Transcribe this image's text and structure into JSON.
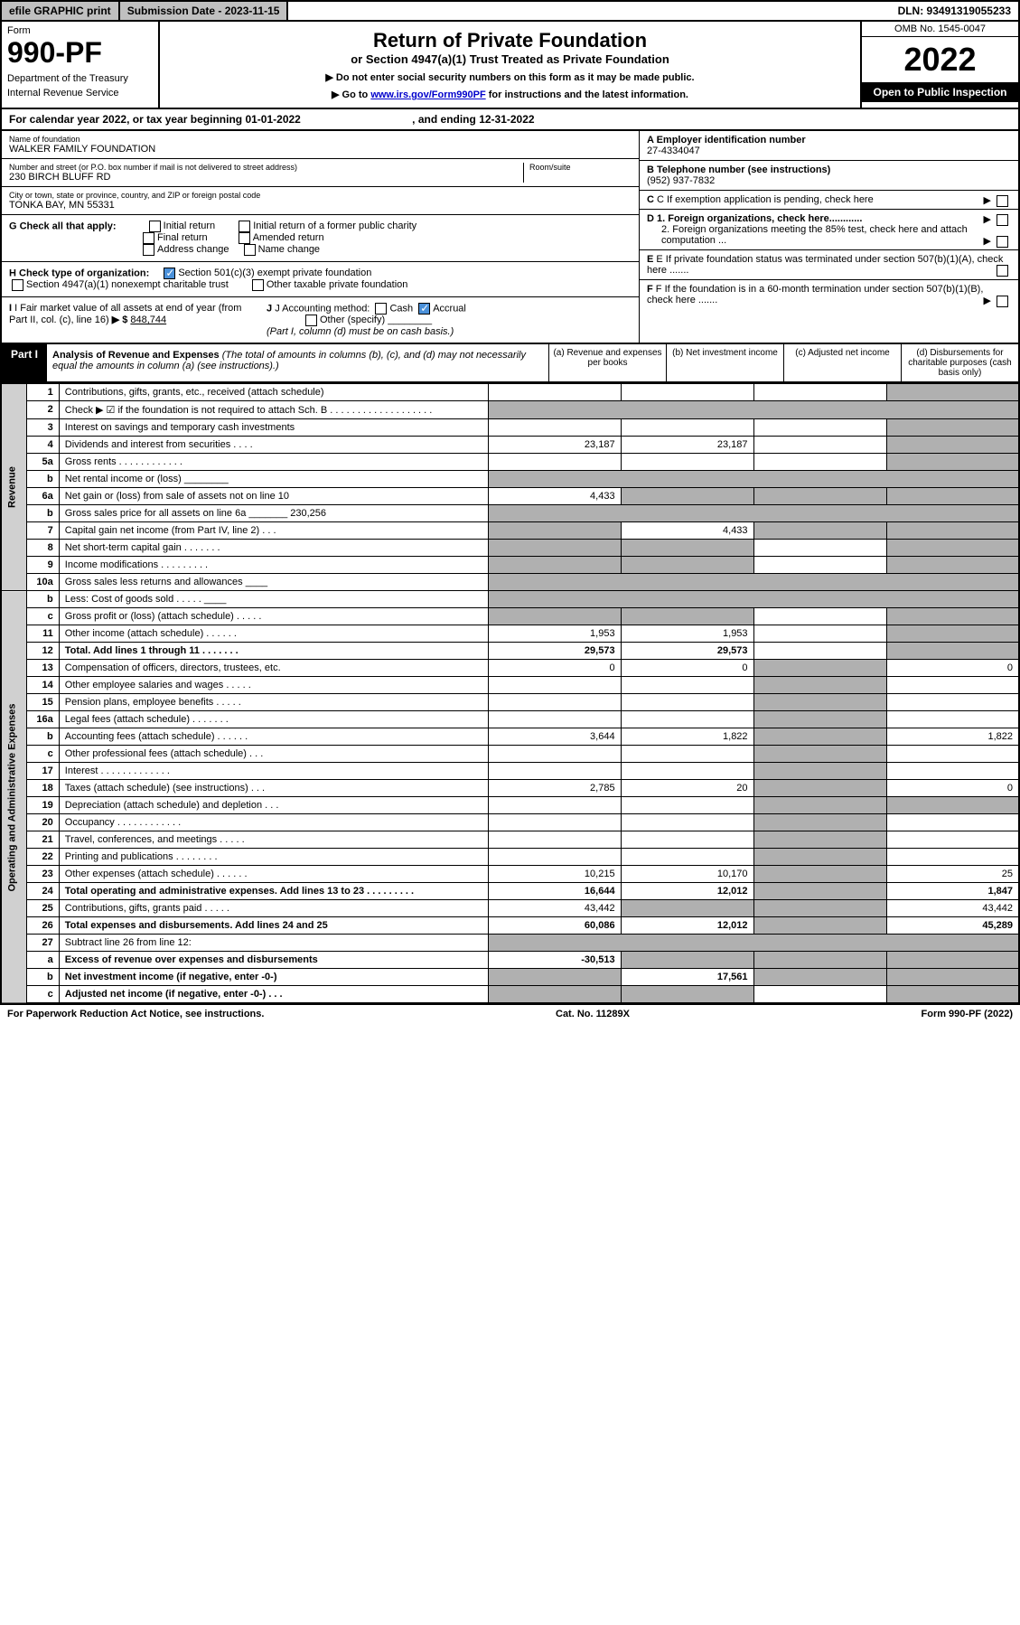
{
  "header": {
    "efile": "efile GRAPHIC print",
    "submission": "Submission Date - 2023-11-15",
    "dln": "DLN: 93491319055233"
  },
  "form": {
    "label": "Form",
    "number": "990-PF",
    "dept1": "Department of the Treasury",
    "dept2": "Internal Revenue Service"
  },
  "title": {
    "main": "Return of Private Foundation",
    "sub": "or Section 4947(a)(1) Trust Treated as Private Foundation",
    "note1": "▶ Do not enter social security numbers on this form as it may be made public.",
    "note2_prefix": "▶ Go to ",
    "note2_link": "www.irs.gov/Form990PF",
    "note2_suffix": " for instructions and the latest information."
  },
  "year_box": {
    "omb": "OMB No. 1545-0047",
    "year": "2022",
    "inspect": "Open to Public Inspection"
  },
  "calendar": {
    "prefix": "For calendar year 2022, or tax year beginning ",
    "begin": "01-01-2022",
    "mid": " , and ending ",
    "end": "12-31-2022"
  },
  "entity": {
    "name_label": "Name of foundation",
    "name": "WALKER FAMILY FOUNDATION",
    "addr_label": "Number and street (or P.O. box number if mail is not delivered to street address)",
    "addr": "230 BIRCH BLUFF RD",
    "room_label": "Room/suite",
    "city_label": "City or town, state or province, country, and ZIP or foreign postal code",
    "city": "TONKA BAY, MN  55331",
    "ein_label": "A Employer identification number",
    "ein": "27-4334047",
    "phone_label": "B Telephone number (see instructions)",
    "phone": "(952) 937-7832",
    "c_label": "C If exemption application is pending, check here",
    "d1": "D 1. Foreign organizations, check here............",
    "d2": "2. Foreign organizations meeting the 85% test, check here and attach computation ...",
    "e": "E If private foundation status was terminated under section 507(b)(1)(A), check here .......",
    "f": "F If the foundation is in a 60-month termination under section 507(b)(1)(B), check here ......."
  },
  "checks": {
    "g_label": "G Check all that apply:",
    "g_opts": [
      "Initial return",
      "Initial return of a former public charity",
      "Final return",
      "Amended return",
      "Address change",
      "Name change"
    ],
    "h_label": "H Check type of organization:",
    "h1": "Section 501(c)(3) exempt private foundation",
    "h2": "Section 4947(a)(1) nonexempt charitable trust",
    "h3": "Other taxable private foundation",
    "i_label": "I Fair market value of all assets at end of year (from Part II, col. (c), line 16)",
    "i_val": "848,744",
    "j_label": "J Accounting method:",
    "j_opts": [
      "Cash",
      "Accrual"
    ],
    "j_other": "Other (specify)",
    "j_note": "(Part I, column (d) must be on cash basis.)"
  },
  "part1": {
    "label": "Part I",
    "title": "Analysis of Revenue and Expenses",
    "desc": "(The total of amounts in columns (b), (c), and (d) may not necessarily equal the amounts in column (a) (see instructions).)",
    "cols": {
      "a": "(a) Revenue and expenses per books",
      "b": "(b) Net investment income",
      "c": "(c) Adjusted net income",
      "d": "(d) Disbursements for charitable purposes (cash basis only)"
    }
  },
  "sections": {
    "revenue": "Revenue",
    "expenses": "Operating and Administrative Expenses"
  },
  "rows": [
    {
      "n": "1",
      "desc": "Contributions, gifts, grants, etc., received (attach schedule)",
      "a": "",
      "b": "",
      "c": "",
      "d": "",
      "d_shade": true
    },
    {
      "n": "2",
      "desc": "Check ▶ ☑ if the foundation is not required to attach Sch. B  . . . . . . . . . . . . . . . . . . .",
      "shade_all": true
    },
    {
      "n": "3",
      "desc": "Interest on savings and temporary cash investments",
      "a": "",
      "b": "",
      "c": "",
      "d": "",
      "d_shade": true
    },
    {
      "n": "4",
      "desc": "Dividends and interest from securities  . . . .",
      "a": "23,187",
      "b": "23,187",
      "c": "",
      "d": "",
      "d_shade": true
    },
    {
      "n": "5a",
      "desc": "Gross rents  . . . . . . . . . . . .",
      "a": "",
      "b": "",
      "c": "",
      "d": "",
      "d_shade": true
    },
    {
      "n": "b",
      "desc": "Net rental income or (loss) ________",
      "shade_all": true
    },
    {
      "n": "6a",
      "desc": "Net gain or (loss) from sale of assets not on line 10",
      "a": "4,433",
      "b": "",
      "b_shade": true,
      "c": "",
      "c_shade": true,
      "d": "",
      "d_shade": true
    },
    {
      "n": "b",
      "desc": "Gross sales price for all assets on line 6a _______ 230,256",
      "shade_all": true
    },
    {
      "n": "7",
      "desc": "Capital gain net income (from Part IV, line 2)  . . .",
      "a": "",
      "a_shade": true,
      "b": "4,433",
      "c": "",
      "c_shade": true,
      "d": "",
      "d_shade": true
    },
    {
      "n": "8",
      "desc": "Net short-term capital gain  . . . . . . .",
      "a": "",
      "a_shade": true,
      "b": "",
      "b_shade": true,
      "c": "",
      "d": "",
      "d_shade": true
    },
    {
      "n": "9",
      "desc": "Income modifications  . . . . . . . . .",
      "a": "",
      "a_shade": true,
      "b": "",
      "b_shade": true,
      "c": "",
      "d": "",
      "d_shade": true
    },
    {
      "n": "10a",
      "desc": "Gross sales less returns and allowances ____",
      "shade_all": true
    },
    {
      "n": "b",
      "desc": "Less: Cost of goods sold  . . . . . ____",
      "shade_all": true
    },
    {
      "n": "c",
      "desc": "Gross profit or (loss) (attach schedule)  . . . . .",
      "a": "",
      "a_shade": true,
      "b": "",
      "b_shade": true,
      "c": "",
      "d": "",
      "d_shade": true
    },
    {
      "n": "11",
      "desc": "Other income (attach schedule)  . . . . . .",
      "a": "1,953",
      "b": "1,953",
      "c": "",
      "d": "",
      "d_shade": true
    },
    {
      "n": "12",
      "desc": "Total. Add lines 1 through 11  . . . . . . .",
      "a": "29,573",
      "b": "29,573",
      "c": "",
      "d": "",
      "d_shade": true,
      "bold": true
    },
    {
      "n": "13",
      "desc": "Compensation of officers, directors, trustees, etc.",
      "a": "0",
      "b": "0",
      "c": "",
      "c_shade": true,
      "d": "0"
    },
    {
      "n": "14",
      "desc": "Other employee salaries and wages  . . . . .",
      "a": "",
      "b": "",
      "c": "",
      "c_shade": true,
      "d": ""
    },
    {
      "n": "15",
      "desc": "Pension plans, employee benefits  . . . . .",
      "a": "",
      "b": "",
      "c": "",
      "c_shade": true,
      "d": ""
    },
    {
      "n": "16a",
      "desc": "Legal fees (attach schedule)  . . . . . . .",
      "a": "",
      "b": "",
      "c": "",
      "c_shade": true,
      "d": ""
    },
    {
      "n": "b",
      "desc": "Accounting fees (attach schedule)  . . . . . .",
      "a": "3,644",
      "b": "1,822",
      "c": "",
      "c_shade": true,
      "d": "1,822"
    },
    {
      "n": "c",
      "desc": "Other professional fees (attach schedule)  . . .",
      "a": "",
      "b": "",
      "c": "",
      "c_shade": true,
      "d": ""
    },
    {
      "n": "17",
      "desc": "Interest  . . . . . . . . . . . . .",
      "a": "",
      "b": "",
      "c": "",
      "c_shade": true,
      "d": ""
    },
    {
      "n": "18",
      "desc": "Taxes (attach schedule) (see instructions)  . . .",
      "a": "2,785",
      "b": "20",
      "c": "",
      "c_shade": true,
      "d": "0"
    },
    {
      "n": "19",
      "desc": "Depreciation (attach schedule) and depletion  . . .",
      "a": "",
      "b": "",
      "c": "",
      "c_shade": true,
      "d": "",
      "d_shade": true
    },
    {
      "n": "20",
      "desc": "Occupancy  . . . . . . . . . . . .",
      "a": "",
      "b": "",
      "c": "",
      "c_shade": true,
      "d": ""
    },
    {
      "n": "21",
      "desc": "Travel, conferences, and meetings  . . . . .",
      "a": "",
      "b": "",
      "c": "",
      "c_shade": true,
      "d": ""
    },
    {
      "n": "22",
      "desc": "Printing and publications  . . . . . . . .",
      "a": "",
      "b": "",
      "c": "",
      "c_shade": true,
      "d": ""
    },
    {
      "n": "23",
      "desc": "Other expenses (attach schedule)  . . . . . .",
      "a": "10,215",
      "b": "10,170",
      "c": "",
      "c_shade": true,
      "d": "25"
    },
    {
      "n": "24",
      "desc": "Total operating and administrative expenses. Add lines 13 to 23  . . . . . . . . .",
      "a": "16,644",
      "b": "12,012",
      "c": "",
      "c_shade": true,
      "d": "1,847",
      "bold": true
    },
    {
      "n": "25",
      "desc": "Contributions, gifts, grants paid  . . . . .",
      "a": "43,442",
      "b": "",
      "b_shade": true,
      "c": "",
      "c_shade": true,
      "d": "43,442"
    },
    {
      "n": "26",
      "desc": "Total expenses and disbursements. Add lines 24 and 25",
      "a": "60,086",
      "b": "12,012",
      "c": "",
      "c_shade": true,
      "d": "45,289",
      "bold": true
    },
    {
      "n": "27",
      "desc": "Subtract line 26 from line 12:",
      "shade_all": true
    },
    {
      "n": "a",
      "desc": "Excess of revenue over expenses and disbursements",
      "a": "-30,513",
      "b": "",
      "b_shade": true,
      "c": "",
      "c_shade": true,
      "d": "",
      "d_shade": true,
      "bold": true
    },
    {
      "n": "b",
      "desc": "Net investment income (if negative, enter -0-)",
      "a": "",
      "a_shade": true,
      "b": "17,561",
      "c": "",
      "c_shade": true,
      "d": "",
      "d_shade": true,
      "bold": true
    },
    {
      "n": "c",
      "desc": "Adjusted net income (if negative, enter -0-)  . . .",
      "a": "",
      "a_shade": true,
      "b": "",
      "b_shade": true,
      "c": "",
      "d": "",
      "d_shade": true,
      "bold": true
    }
  ],
  "footer": {
    "left": "For Paperwork Reduction Act Notice, see instructions.",
    "mid": "Cat. No. 11289X",
    "right": "Form 990-PF (2022)"
  }
}
